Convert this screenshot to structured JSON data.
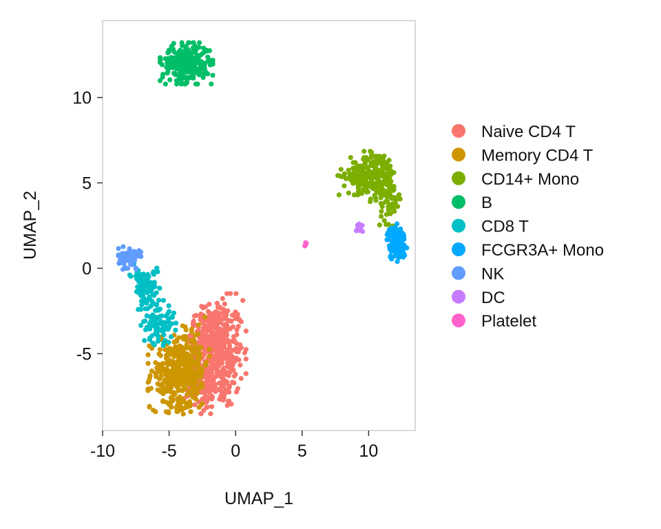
{
  "chart_data": {
    "type": "scatter",
    "title": "",
    "xlabel": "UMAP_1",
    "ylabel": "UMAP_2",
    "xlim": [
      -10,
      13.5
    ],
    "ylim": [
      -9.5,
      14.5
    ],
    "xticks": [
      -10,
      -5,
      0,
      5,
      10
    ],
    "yticks": [
      -5,
      0,
      5,
      10
    ],
    "xtick_labels": [
      "-10",
      "-5",
      "0",
      "5",
      "10"
    ],
    "ytick_labels": [
      "-5",
      "0",
      "5",
      "10"
    ],
    "grid": false,
    "legend_position": "right",
    "series": [
      {
        "name": "Naive CD4 T",
        "color": "#F8766D",
        "clusters": [
          {
            "cx": -1.2,
            "cy": -5.0,
            "sx": 0.9,
            "sy": 1.6,
            "n": 350
          },
          {
            "cx": -2.2,
            "cy": -3.8,
            "sx": 0.6,
            "sy": 0.7,
            "n": 120
          },
          {
            "cx": -2.4,
            "cy": -7.0,
            "sx": 0.7,
            "sy": 0.6,
            "n": 90
          }
        ]
      },
      {
        "name": "Memory CD4 T",
        "color": "#CD9600",
        "clusters": [
          {
            "cx": -4.6,
            "cy": -6.2,
            "sx": 0.9,
            "sy": 1.0,
            "n": 260
          },
          {
            "cx": -3.3,
            "cy": -5.5,
            "sx": 0.6,
            "sy": 1.2,
            "n": 120
          },
          {
            "cx": -4.3,
            "cy": -8.0,
            "sx": 0.4,
            "sy": 0.3,
            "n": 25
          }
        ]
      },
      {
        "name": "CD14+ Mono",
        "color": "#7CAE00",
        "clusters": [
          {
            "cx": 10.6,
            "cy": 5.4,
            "sx": 0.8,
            "sy": 0.7,
            "n": 200
          },
          {
            "cx": 9.0,
            "cy": 5.4,
            "sx": 0.6,
            "sy": 0.5,
            "n": 60
          },
          {
            "cx": 11.6,
            "cy": 3.8,
            "sx": 0.35,
            "sy": 0.6,
            "n": 50
          }
        ]
      },
      {
        "name": "B",
        "color": "#00BE67",
        "clusters": [
          {
            "cx": -3.7,
            "cy": 12.0,
            "sx": 0.9,
            "sy": 0.55,
            "n": 280
          }
        ]
      },
      {
        "name": "CD8 T",
        "color": "#00BFC4",
        "clusters": [
          {
            "cx": -6.6,
            "cy": -1.2,
            "sx": 0.45,
            "sy": 0.55,
            "n": 70
          },
          {
            "cx": -5.8,
            "cy": -3.2,
            "sx": 0.6,
            "sy": 0.6,
            "n": 90
          },
          {
            "cx": -7.3,
            "cy": -0.4,
            "sx": 0.3,
            "sy": 0.3,
            "n": 20
          }
        ]
      },
      {
        "name": "FCGR3A+ Mono",
        "color": "#00A9FF",
        "clusters": [
          {
            "cx": 12.1,
            "cy": 1.5,
            "sx": 0.35,
            "sy": 0.5,
            "n": 110
          }
        ]
      },
      {
        "name": "NK",
        "color": "#619CFF",
        "clusters": [
          {
            "cx": -8.0,
            "cy": 0.6,
            "sx": 0.4,
            "sy": 0.3,
            "n": 100
          }
        ]
      },
      {
        "name": "DC",
        "color": "#C77CFF",
        "clusters": [
          {
            "cx": 9.3,
            "cy": 2.4,
            "sx": 0.15,
            "sy": 0.2,
            "n": 12
          }
        ]
      },
      {
        "name": "Platelet",
        "color": "#FF61CC",
        "clusters": [
          {
            "cx": 5.3,
            "cy": 1.4,
            "sx": 0.06,
            "sy": 0.06,
            "n": 5
          }
        ]
      }
    ]
  }
}
